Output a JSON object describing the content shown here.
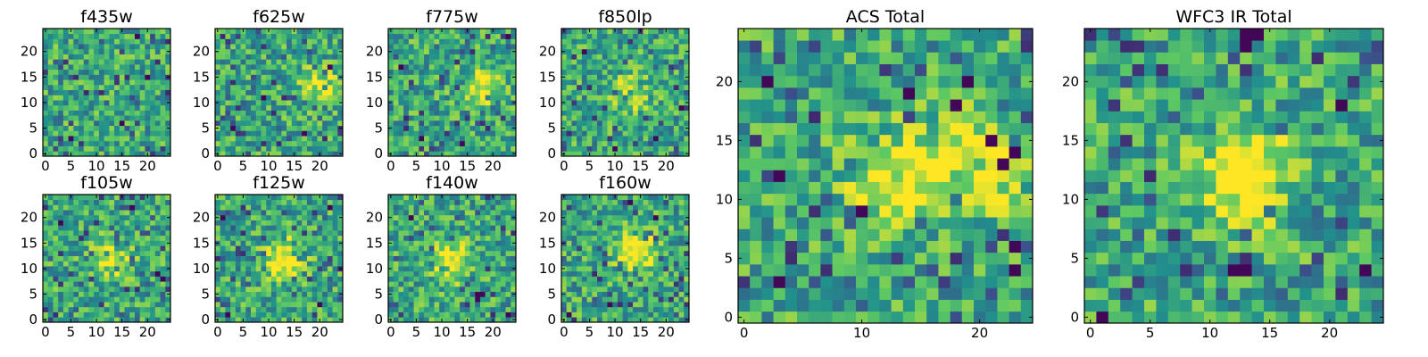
{
  "figure": {
    "colormap": "viridis",
    "colormap_stops": [
      "#440154",
      "#3b528b",
      "#21918c",
      "#5ec962",
      "#fde725"
    ],
    "pixel_grid": [
      25,
      25
    ]
  },
  "chart_data": [
    {
      "type": "heatmap",
      "title": "f435w",
      "xlim": [
        0,
        24
      ],
      "ylim": [
        0,
        24
      ],
      "xticks": [
        0,
        5,
        10,
        15,
        20
      ],
      "yticks": [
        0,
        5,
        10,
        15,
        20
      ],
      "xtick_labels": [
        "0",
        "5",
        "10",
        "15",
        "20"
      ],
      "ytick_labels": [
        "0",
        "5",
        "10",
        "15",
        "20"
      ],
      "colormap": "viridis",
      "bright_region": null,
      "dark_pixels": [
        [
          18,
          23
        ],
        [
          5,
          3
        ],
        [
          15,
          6
        ],
        [
          20,
          15
        ]
      ]
    },
    {
      "type": "heatmap",
      "title": "f625w",
      "xlim": [
        0,
        24
      ],
      "ylim": [
        0,
        24
      ],
      "xticks": [
        0,
        5,
        10,
        15,
        20
      ],
      "yticks": [
        0,
        5,
        10,
        15,
        20
      ],
      "xtick_labels": [
        "0",
        "5",
        "10",
        "15",
        "20"
      ],
      "ytick_labels": [
        "0",
        "5",
        "10",
        "15",
        "20"
      ],
      "colormap": "viridis",
      "bright_region": {
        "center": [
          20,
          13
        ],
        "level": 0.35
      },
      "dark_pixels": [
        [
          9,
          11
        ],
        [
          3,
          5
        ],
        [
          17,
          4
        ],
        [
          22,
          17
        ]
      ]
    },
    {
      "type": "heatmap",
      "title": "f775w",
      "xlim": [
        0,
        24
      ],
      "ylim": [
        0,
        24
      ],
      "xticks": [
        0,
        5,
        10,
        15,
        20
      ],
      "yticks": [
        0,
        5,
        10,
        15,
        20
      ],
      "xtick_labels": [
        "0",
        "5",
        "10",
        "15",
        "20"
      ],
      "ytick_labels": [
        "0",
        "5",
        "10",
        "15",
        "20"
      ],
      "colormap": "viridis",
      "bright_region": {
        "center": [
          18,
          13
        ],
        "level": 0.4
      },
      "dark_pixels": [
        [
          23,
          23
        ],
        [
          6,
          3
        ],
        [
          14,
          2
        ],
        [
          2,
          17
        ]
      ]
    },
    {
      "type": "heatmap",
      "title": "f850lp",
      "xlim": [
        0,
        24
      ],
      "ylim": [
        0,
        24
      ],
      "xticks": [
        0,
        5,
        10,
        15,
        20
      ],
      "yticks": [
        0,
        5,
        10,
        15,
        20
      ],
      "xtick_labels": [
        "0",
        "5",
        "10",
        "15",
        "20"
      ],
      "ytick_labels": [
        "0",
        "5",
        "10",
        "15",
        "20"
      ],
      "colormap": "viridis",
      "bright_region": {
        "center": [
          13,
          12
        ],
        "level": 0.3
      },
      "dark_pixels": [
        [
          4,
          20
        ],
        [
          23,
          9
        ],
        [
          18,
          3
        ],
        [
          10,
          1
        ]
      ]
    },
    {
      "type": "heatmap",
      "title": "f105w",
      "xlim": [
        0,
        24
      ],
      "ylim": [
        0,
        24
      ],
      "xticks": [
        0,
        5,
        10,
        15,
        20
      ],
      "yticks": [
        0,
        5,
        10,
        15,
        20
      ],
      "xtick_labels": [
        "0",
        "5",
        "10",
        "15",
        "20"
      ],
      "ytick_labels": [
        "0",
        "5",
        "10",
        "15",
        "20"
      ],
      "colormap": "viridis",
      "bright_region": {
        "center": [
          13,
          12
        ],
        "level": 0.35
      },
      "dark_pixels": [
        [
          22,
          9
        ],
        [
          23,
          8
        ],
        [
          3,
          19
        ],
        [
          17,
          22
        ]
      ]
    },
    {
      "type": "heatmap",
      "title": "f125w",
      "xlim": [
        0,
        24
      ],
      "ylim": [
        0,
        24
      ],
      "xticks": [
        0,
        5,
        10,
        15,
        20
      ],
      "yticks": [
        0,
        5,
        10,
        15,
        20
      ],
      "xtick_labels": [
        "0",
        "5",
        "10",
        "15",
        "20"
      ],
      "ytick_labels": [
        "0",
        "5",
        "10",
        "15",
        "20"
      ],
      "colormap": "viridis",
      "bright_region": {
        "center": [
          13,
          12
        ],
        "level": 0.5
      },
      "dark_pixels": [
        [
          2,
          1
        ],
        [
          20,
          3
        ],
        [
          1,
          20
        ],
        [
          22,
          22
        ]
      ]
    },
    {
      "type": "heatmap",
      "title": "f140w",
      "xlim": [
        0,
        24
      ],
      "ylim": [
        0,
        24
      ],
      "xticks": [
        0,
        5,
        10,
        15,
        20
      ],
      "yticks": [
        0,
        5,
        10,
        15,
        20
      ],
      "xtick_labels": [
        "0",
        "5",
        "10",
        "15",
        "20"
      ],
      "ytick_labels": [
        "0",
        "5",
        "10",
        "15",
        "20"
      ],
      "colormap": "viridis",
      "bright_region": {
        "center": [
          12,
          11
        ],
        "level": 0.5
      },
      "dark_pixels": [
        [
          17,
          4
        ],
        [
          18,
          5
        ],
        [
          17,
          5
        ],
        [
          4,
          20
        ],
        [
          23,
          1
        ]
      ]
    },
    {
      "type": "heatmap",
      "title": "f160w",
      "xlim": [
        0,
        24
      ],
      "ylim": [
        0,
        24
      ],
      "xticks": [
        0,
        5,
        10,
        15,
        20
      ],
      "yticks": [
        0,
        5,
        10,
        15,
        20
      ],
      "xtick_labels": [
        "0",
        "5",
        "10",
        "15",
        "20"
      ],
      "ytick_labels": [
        "0",
        "5",
        "10",
        "15",
        "20"
      ],
      "colormap": "viridis",
      "bright_region": {
        "center": [
          14,
          13
        ],
        "level": 0.55
      },
      "dark_pixels": [
        [
          13,
          23
        ],
        [
          18,
          20
        ],
        [
          1,
          1
        ],
        [
          9,
          3
        ]
      ]
    },
    {
      "type": "heatmap",
      "title": "ACS Total",
      "xlim": [
        0,
        24
      ],
      "ylim": [
        0,
        24
      ],
      "xticks": [
        0,
        10,
        20
      ],
      "yticks": [
        0,
        5,
        10,
        15,
        20
      ],
      "xtick_labels": [
        "0",
        "10",
        "20"
      ],
      "ytick_labels": [
        "0",
        "5",
        "10",
        "15",
        "20"
      ],
      "colormap": "viridis",
      "bright_region": {
        "center": [
          13,
          12
        ],
        "level": 0.45
      },
      "secondary_bright_region": {
        "center": [
          20,
          13
        ],
        "level": 0.5
      },
      "dark_pixels": [
        [
          2,
          20
        ],
        [
          3,
          12
        ],
        [
          14,
          19
        ],
        [
          18,
          18
        ],
        [
          19,
          20
        ],
        [
          22,
          13
        ],
        [
          23,
          14
        ],
        [
          23,
          6
        ],
        [
          23,
          4
        ],
        [
          10,
          9
        ],
        [
          3,
          3
        ],
        [
          21,
          15
        ]
      ]
    },
    {
      "type": "heatmap",
      "title": "WFC3 IR Total",
      "xlim": [
        0,
        24
      ],
      "ylim": [
        0,
        24
      ],
      "xticks": [
        0,
        5,
        10,
        15,
        20
      ],
      "yticks": [
        0,
        5,
        10,
        15,
        20
      ],
      "xtick_labels": [
        "0",
        "5",
        "10",
        "15",
        "20"
      ],
      "ytick_labels": [
        "0",
        "5",
        "10",
        "15",
        "20"
      ],
      "colormap": "viridis",
      "bright_region": {
        "center": [
          13,
          12
        ],
        "level": 0.55
      },
      "dark_pixels": [
        [
          13,
          24
        ],
        [
          14,
          24
        ],
        [
          13,
          23
        ],
        [
          1,
          0
        ],
        [
          12,
          4
        ],
        [
          13,
          4
        ],
        [
          23,
          4
        ],
        [
          21,
          18
        ]
      ]
    }
  ]
}
